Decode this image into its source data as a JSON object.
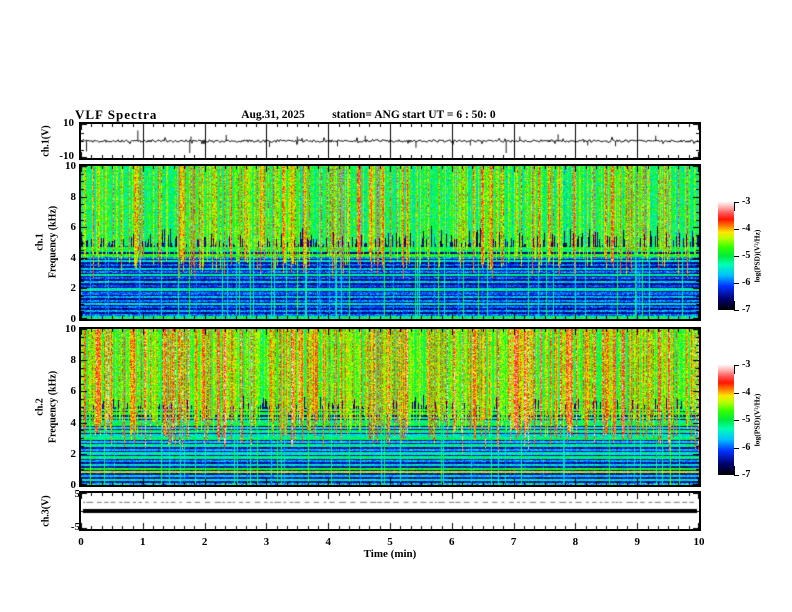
{
  "header": {
    "title": "VLF Spectra",
    "date": "Aug.31, 2025",
    "station": "station= ANG",
    "start_ut": "start UT =  6 : 50: 0"
  },
  "panels": {
    "ch1_wave": {
      "ylabel": "ch.1(V)",
      "ymax": "10",
      "ymin": "-10"
    },
    "ch1_spec": {
      "name": "ch.1",
      "ylabel": "Frequency (kHz)",
      "yticks": [
        "10",
        "8",
        "6",
        "4",
        "2",
        "0"
      ]
    },
    "ch2_spec": {
      "name": "ch.2",
      "ylabel": "Frequency (kHz)",
      "yticks": [
        "10",
        "8",
        "6",
        "4",
        "2",
        "0"
      ]
    },
    "ch3_wave": {
      "ylabel": "ch.3(V)",
      "ymax": "5",
      "ymin": "-5"
    }
  },
  "xaxis": {
    "label": "Time (min)",
    "ticks": [
      "0",
      "1",
      "2",
      "3",
      "4",
      "5",
      "6",
      "7",
      "8",
      "9",
      "10"
    ]
  },
  "colorbar": {
    "label": "log(PSD)(V²/Hz)",
    "ticks": [
      "-3",
      "-4",
      "-5",
      "-6",
      "-7"
    ]
  },
  "colors": {
    "axis": "#000000",
    "background": "#ffffff"
  },
  "chart_data": {
    "figure": "VLF spectra quick-look plot, station ANG, Aug.31 2025, start UT 6:50:0, duration 10 min",
    "panels": [
      {
        "id": "ch1_voltage",
        "type": "line",
        "ylabel": "ch.1(V)",
        "ylim": [
          -10,
          10
        ],
        "xlim_min": [
          0,
          10
        ],
        "grid": "vertical gridlines at every minute",
        "description": "Broadband noisy voltage trace near 0 V with impulsive spikes",
        "spikes_t_min_v": [
          [
            0.09,
            -7
          ],
          [
            0.92,
            7
          ],
          [
            1.76,
            -8
          ],
          [
            1.78,
            3
          ],
          [
            2.35,
            4
          ],
          [
            3.05,
            -4
          ],
          [
            3.5,
            3
          ],
          [
            4.15,
            -3.5
          ],
          [
            4.6,
            3.5
          ],
          [
            5.42,
            -4.5
          ],
          [
            6.3,
            -3
          ],
          [
            6.88,
            -8
          ],
          [
            7.1,
            3
          ],
          [
            7.72,
            4.5
          ],
          [
            8.2,
            -3
          ],
          [
            8.65,
            -3.5
          ],
          [
            9.3,
            3.5
          ]
        ]
      },
      {
        "id": "ch1_spectrogram",
        "type": "heatmap",
        "ylabel": "ch.1 Frequency (kHz)",
        "ylim_khz": [
          0,
          10
        ],
        "xlim_min": [
          0,
          10
        ],
        "clim_log_psd": [
          -7,
          -3
        ],
        "description": "Spectrogram: bright green/yellow sferic columns above ~5 kHz, dark blue/black below 4.5 kHz crossed by horizontal narrowband lines and vertical streaks, bright band at 0 kHz",
        "render": {
          "seed": 1337,
          "upperBase": -5.45,
          "streakGain": 1.9,
          "cutoffBase": 5.4,
          "cutoffVar": 1.6,
          "lowerBase": -6.85,
          "bottomF": 0.22,
          "bottomV": -5.2,
          "strongProb": 0.07,
          "lines": [
            [
              4.65,
              -5.0,
              0.08
            ],
            [
              4.45,
              -5.2,
              0.07
            ],
            [
              4.2,
              -4.8,
              0.09
            ],
            [
              4.0,
              -5.8,
              0.07
            ],
            [
              3.8,
              -5.5,
              0.07
            ],
            [
              3.55,
              -6.0,
              0.07
            ],
            [
              3.3,
              -5.6,
              0.08
            ],
            [
              3.1,
              -5.9,
              0.07
            ],
            [
              2.9,
              -5.3,
              0.08
            ],
            [
              2.7,
              -6.0,
              0.07
            ],
            [
              2.45,
              -5.6,
              0.08
            ],
            [
              2.2,
              -6.1,
              0.07
            ],
            [
              1.95,
              -5.4,
              0.08
            ],
            [
              1.7,
              -6.0,
              0.07
            ],
            [
              1.45,
              -5.7,
              0.07
            ],
            [
              1.2,
              -5.9,
              0.07
            ],
            [
              1.0,
              -5.5,
              0.08
            ],
            [
              0.8,
              -6.0,
              0.07
            ],
            [
              0.55,
              -5.8,
              0.07
            ],
            [
              0.3,
              -5.9,
              0.07
            ]
          ]
        }
      },
      {
        "id": "ch2_spectrogram",
        "type": "heatmap",
        "ylabel": "ch.2 Frequency (kHz)",
        "ylim_khz": [
          0,
          10
        ],
        "xlim_min": [
          0,
          10
        ],
        "clim_log_psd": [
          -7,
          -3
        ],
        "description": "Spectrogram: hotter than ch.1 with yellow/orange/red columns above ~5 kHz, dark background below with many horizontal narrowband lines including an orange line near 0.85 kHz",
        "render": {
          "seed": 4242,
          "upperBase": -5.1,
          "streakGain": 1.9,
          "cutoffBase": 5.0,
          "cutoffVar": 1.8,
          "lowerBase": -6.8,
          "bottomF": 0.18,
          "bottomV": -5.6,
          "strongProb": 0.08,
          "lines": [
            [
              4.85,
              -5.0,
              0.08
            ],
            [
              4.6,
              -4.9,
              0.08
            ],
            [
              4.35,
              -5.1,
              0.07
            ],
            [
              4.1,
              -5.3,
              0.07
            ],
            [
              3.9,
              -5.0,
              0.08
            ],
            [
              3.7,
              -5.4,
              0.07
            ],
            [
              3.45,
              -5.2,
              0.08
            ],
            [
              3.2,
              -5.5,
              0.07
            ],
            [
              3.0,
              -5.1,
              0.08
            ],
            [
              2.8,
              -5.6,
              0.07
            ],
            [
              2.55,
              -5.3,
              0.08
            ],
            [
              2.3,
              -5.7,
              0.07
            ],
            [
              2.05,
              -5.4,
              0.07
            ],
            [
              1.8,
              -5.2,
              0.08
            ],
            [
              1.55,
              -5.8,
              0.07
            ],
            [
              1.3,
              -5.5,
              0.07
            ],
            [
              1.05,
              -4.9,
              0.08
            ],
            [
              0.85,
              -4.3,
              0.08
            ],
            [
              0.6,
              -5.6,
              0.07
            ],
            [
              0.35,
              -5.4,
              0.07
            ]
          ]
        }
      },
      {
        "id": "ch3_voltage",
        "type": "line",
        "ylabel": "ch.3(V)",
        "ylim": [
          -5,
          5
        ],
        "xlim_min": [
          0,
          10
        ],
        "description": "Flat thick trace at ~0 V for entire interval, faint intermittent dashed trace near +2.7 V",
        "flat_value": 0,
        "faint_value": 2.7
      }
    ],
    "colorbars": [
      {
        "label": "log(PSD)(V²/Hz)",
        "range": [
          -3,
          -7
        ],
        "ticks": [
          -3,
          -4,
          -5,
          -6,
          -7
        ],
        "applies_to": "ch1_spectrogram"
      },
      {
        "label": "log(PSD)(V²/Hz)",
        "range": [
          -3,
          -7
        ],
        "ticks": [
          -3,
          -4,
          -5,
          -6,
          -7
        ],
        "applies_to": "ch2_spectrogram"
      }
    ],
    "colormap_stops": [
      [
        0.0,
        0,
        0,
        0
      ],
      [
        0.1,
        0,
        0,
        110
      ],
      [
        0.22,
        0,
        50,
        255
      ],
      [
        0.32,
        0,
        190,
        255
      ],
      [
        0.42,
        0,
        255,
        180
      ],
      [
        0.5,
        0,
        235,
        60
      ],
      [
        0.58,
        50,
        255,
        0
      ],
      [
        0.66,
        180,
        255,
        0
      ],
      [
        0.72,
        255,
        230,
        0
      ],
      [
        0.78,
        255,
        120,
        0
      ],
      [
        0.84,
        255,
        20,
        0
      ],
      [
        0.9,
        255,
        90,
        90
      ],
      [
        0.96,
        255,
        190,
        190
      ],
      [
        1.0,
        255,
        245,
        245
      ]
    ],
    "xaxis": {
      "label": "Time (min)",
      "ticks": [
        0,
        1,
        2,
        3,
        4,
        5,
        6,
        7,
        8,
        9,
        10
      ],
      "minor_tick_interval_min": 0.1667
    }
  }
}
